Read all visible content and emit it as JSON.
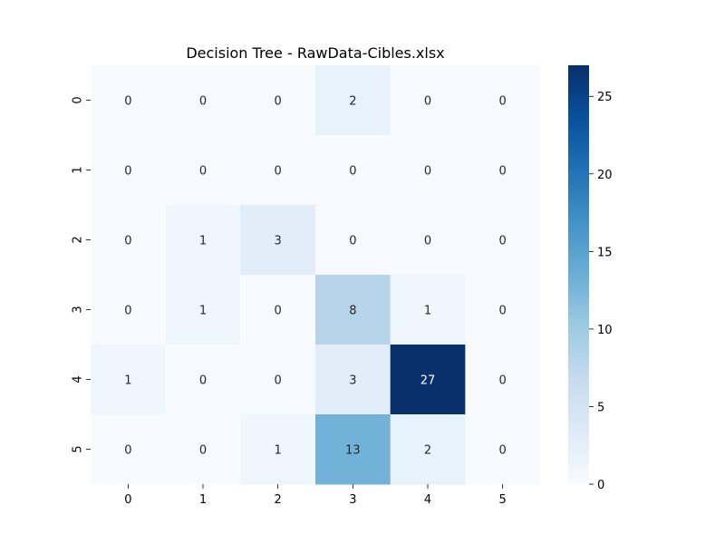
{
  "chart_data": {
    "type": "heatmap",
    "title": "Decision Tree - RawData-Cibles.xlsx",
    "xlabel": "",
    "ylabel": "",
    "x_categories": [
      "0",
      "1",
      "2",
      "3",
      "4",
      "5"
    ],
    "y_categories": [
      "0",
      "1",
      "2",
      "3",
      "4",
      "5"
    ],
    "values": [
      [
        0,
        0,
        0,
        2,
        0,
        0
      ],
      [
        0,
        0,
        0,
        0,
        0,
        0
      ],
      [
        0,
        1,
        3,
        0,
        0,
        0
      ],
      [
        0,
        1,
        0,
        8,
        1,
        0
      ],
      [
        1,
        0,
        0,
        3,
        27,
        0
      ],
      [
        0,
        0,
        1,
        13,
        2,
        0
      ]
    ],
    "colormap": "Blues",
    "colorbar": {
      "min": 0,
      "max": 27,
      "ticks": [
        0,
        5,
        10,
        15,
        20,
        25
      ]
    },
    "annotations": true,
    "grid": false
  }
}
